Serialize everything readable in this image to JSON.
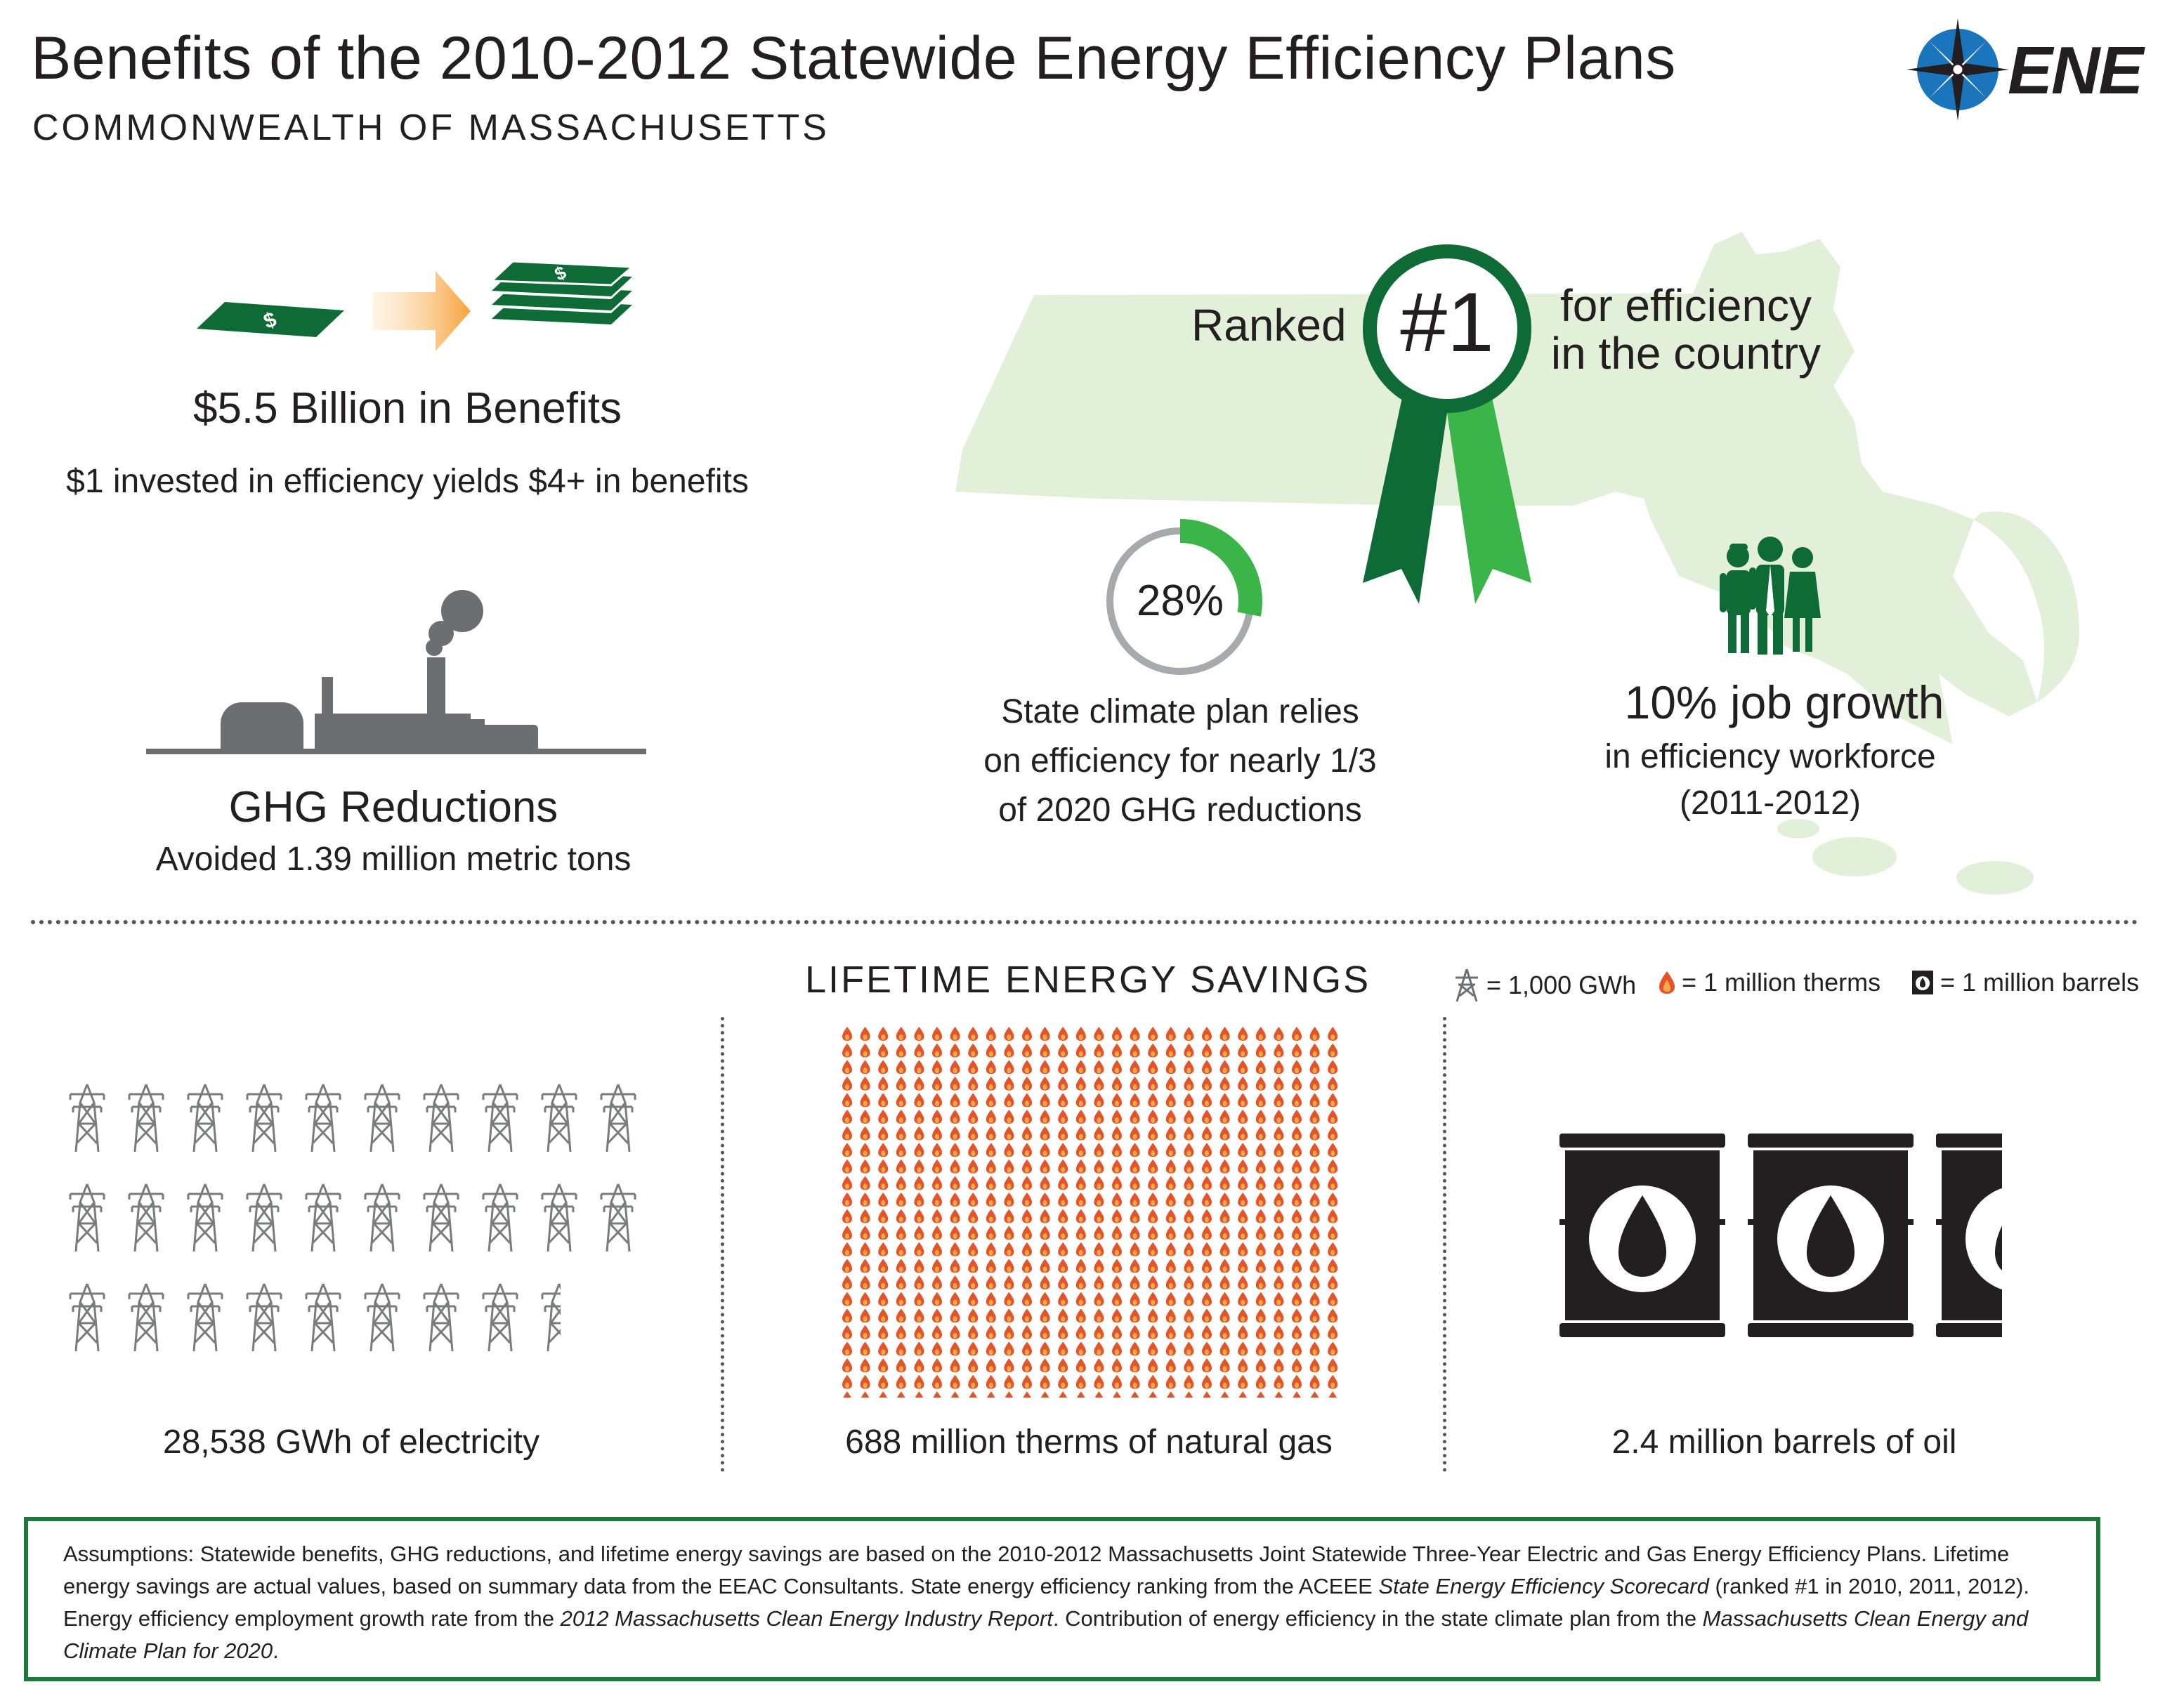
{
  "header": {
    "title": "Benefits of the 2010-2012 Statewide Energy Efficiency Plans",
    "subtitle": "COMMONWEALTH OF MASSACHUSETTS",
    "logo_text": "ENE"
  },
  "benefits": {
    "headline": "$5.5 Billion in Benefits",
    "detail": "$1 invested in efficiency yields $4+ in benefits"
  },
  "ghg": {
    "headline": "GHG Reductions",
    "detail": "Avoided 1.39 million metric tons"
  },
  "ranking": {
    "prefix": "Ranked",
    "rank": "#1",
    "suffix_line1": "for efficiency",
    "suffix_line2": "in the country"
  },
  "climate": {
    "percent_label": "28%",
    "percent_value": 28,
    "line1": "State climate plan relies",
    "line2": "on efficiency for nearly 1/3",
    "line3": "of 2020 GHG reductions"
  },
  "jobs": {
    "headline": "10% job growth",
    "line1": "in efficiency workforce",
    "line2": "(2011-2012)"
  },
  "savings": {
    "title": "LIFETIME ENERGY SAVINGS",
    "legend": {
      "electricity": "= 1,000 GWh",
      "gas": "= 1 million therms",
      "oil": "= 1 million barrels"
    },
    "electricity": {
      "label": "28,538 GWh of electricity",
      "value": 28538,
      "icons": 28.538
    },
    "gas": {
      "label": "688 million therms of natural gas",
      "value": 688,
      "icons": 688
    },
    "oil": {
      "label": "2.4 million barrels of oil",
      "value": 2.4,
      "icons": 2.4
    }
  },
  "assumptions": {
    "p1": "Assumptions: Statewide benefits, GHG reductions, and lifetime energy savings are based on the 2010-2012 Massachusetts Joint Statewide Three-Year Electric and Gas Energy Efficiency Plans. Lifetime energy savings are actual values, based on summary data from the EEAC Consultants. State energy efficiency ranking from the ACEEE ",
    "i1": "State Energy Efficiency Scorecard",
    "p2": " (ranked #1 in 2010, 2011, 2012). Energy efficiency employment growth rate from the ",
    "i2": "2012 Massachusetts Clean Energy Industry Report",
    "p3": ". Contribution of energy efficiency in the state climate plan from the ",
    "i3": "Massachusetts Clean Energy and Climate Plan for 2020",
    "p4": "."
  },
  "colors": {
    "dark_green": "#0f6b35",
    "bright_green": "#3bb54a",
    "map_green": "#e2f0d9",
    "orange": "#f9a94a",
    "gray": "#6d6e71",
    "flame": "#e2542a",
    "blue": "#1b75bc"
  }
}
